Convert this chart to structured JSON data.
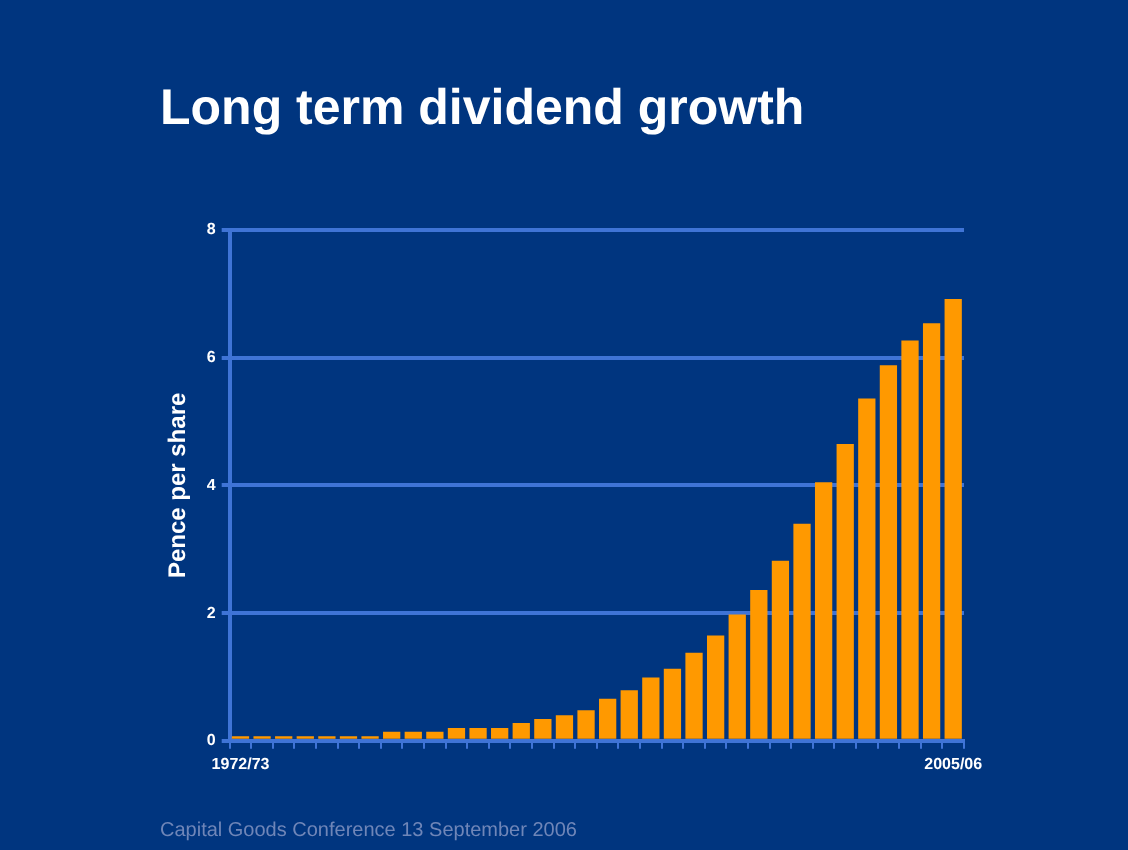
{
  "chart_data": {
    "type": "bar",
    "title": "Long term dividend growth",
    "ylabel": "Pence per share",
    "categories": [
      "1972/73",
      null,
      null,
      null,
      null,
      null,
      null,
      null,
      null,
      null,
      null,
      null,
      null,
      null,
      null,
      null,
      null,
      null,
      null,
      null,
      null,
      null,
      null,
      null,
      null,
      null,
      null,
      null,
      null,
      null,
      null,
      null,
      null,
      "2005/06"
    ],
    "values": [
      0.07,
      0.07,
      0.07,
      0.07,
      0.07,
      0.07,
      0.07,
      0.14,
      0.14,
      0.14,
      0.2,
      0.2,
      0.2,
      0.28,
      0.34,
      0.4,
      0.48,
      0.66,
      0.79,
      0.99,
      1.13,
      1.38,
      1.65,
      1.98,
      2.36,
      2.82,
      3.4,
      4.05,
      4.65,
      5.36,
      5.88,
      6.27,
      6.54,
      6.92
    ],
    "color": "#ff9900",
    "ylim": [
      0,
      8
    ],
    "yticks": [
      0,
      2,
      4,
      6,
      8
    ],
    "grid": "y",
    "legend": false,
    "annotations": [
      "Capital Goods Conference 13 September 2006"
    ]
  }
}
